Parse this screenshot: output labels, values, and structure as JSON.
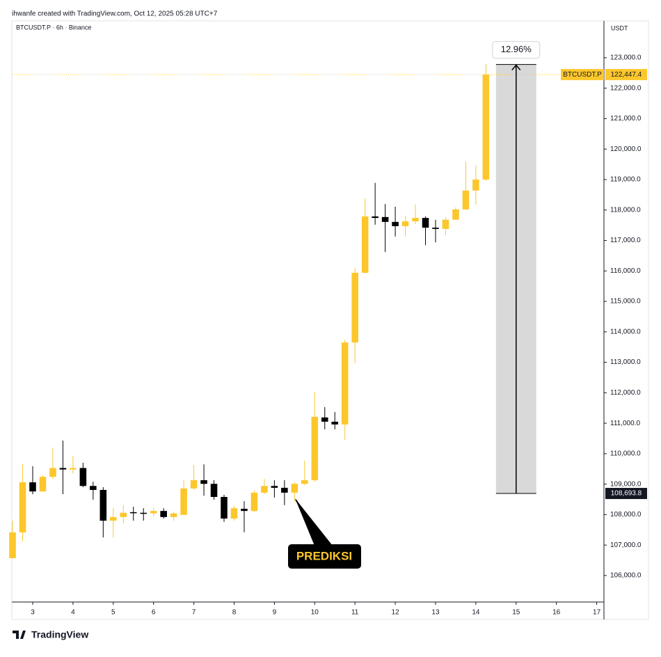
{
  "chart_data": {
    "type": "candlestick",
    "credit": "ihwanfe created with TradingView.com, Oct 12, 2025 05:28 UTC+7",
    "title": "BTCUSDT.P · 6h · Binance",
    "currency": "USDT",
    "brand": "TradingView",
    "up_color": "#fcc72c",
    "down_color": "#000000",
    "xlim": [
      2.482,
      17.18
    ],
    "xticks": [
      3,
      4,
      5,
      6,
      7,
      8,
      9,
      10,
      11,
      12,
      13,
      14,
      15,
      16,
      17
    ],
    "ylim": [
      105130,
      124210
    ],
    "yticks": [
      {
        "value": 106000,
        "label": "106,000.0"
      },
      {
        "value": 107000,
        "label": "107,000.0"
      },
      {
        "value": 108000,
        "label": "108,000.0"
      },
      {
        "value": 109000,
        "label": "109,000.0"
      },
      {
        "value": 110000,
        "label": "110,000.0"
      },
      {
        "value": 111000,
        "label": "111,000.0"
      },
      {
        "value": 112000,
        "label": "112,000.0"
      },
      {
        "value": 113000,
        "label": "113,000.0"
      },
      {
        "value": 114000,
        "label": "114,000.0"
      },
      {
        "value": 115000,
        "label": "115,000.0"
      },
      {
        "value": 116000,
        "label": "116,000.0"
      },
      {
        "value": 117000,
        "label": "117,000.0"
      },
      {
        "value": 118000,
        "label": "118,000.0"
      },
      {
        "value": 119000,
        "label": "119,000.0"
      },
      {
        "value": 120000,
        "label": "120,000.0"
      },
      {
        "value": 121000,
        "label": "121,000.0"
      },
      {
        "value": 122000,
        "label": "122,000.0"
      },
      {
        "value": 123000,
        "label": "123,000.0"
      }
    ],
    "series": [
      {
        "name": "BTCUSDT.P",
        "x": [
          2.5,
          2.75,
          3,
          3.25,
          3.5,
          3.75,
          4,
          4.25,
          4.5,
          4.75,
          5,
          5.25,
          5.5,
          5.75,
          6,
          6.25,
          6.5,
          6.75,
          7,
          7.25,
          7.5,
          7.75,
          8,
          8.25,
          8.5,
          8.75,
          9,
          9.25,
          9.5,
          9.75,
          10,
          10.25,
          10.5,
          10.75,
          11,
          11.25,
          11.5,
          11.75,
          12,
          12.25,
          12.5,
          12.75,
          13,
          13.25,
          13.5,
          13.75,
          14,
          14.25
        ],
        "open": [
          106570,
          107415,
          109060,
          108760,
          109240,
          109530,
          109480,
          109530,
          108940,
          108810,
          107800,
          107920,
          108080,
          108060,
          108040,
          108120,
          107920,
          107990,
          108860,
          109130,
          109010,
          108580,
          107870,
          108190,
          108120,
          108720,
          108940,
          108880,
          108720,
          109010,
          109130,
          111190,
          111050,
          110960,
          113650,
          115940,
          117790,
          117770,
          117610,
          117470,
          117630,
          117740,
          117420,
          117380,
          117680,
          118020,
          118640,
          119000
        ],
        "high": [
          107800,
          109650,
          109590,
          109290,
          110200,
          110430,
          109930,
          109700,
          109080,
          108900,
          108210,
          108310,
          108260,
          108210,
          108210,
          108210,
          108100,
          109130,
          109630,
          109650,
          109130,
          108650,
          108280,
          108440,
          108790,
          109170,
          109130,
          109130,
          109060,
          109770,
          112030,
          111530,
          111370,
          113740,
          116100,
          118380,
          118890,
          118200,
          118110,
          117810,
          118180,
          117790,
          117680,
          117770,
          118090,
          119600,
          119460,
          122800
        ],
        "low": [
          106570,
          107120,
          108670,
          108760,
          109170,
          108670,
          109350,
          108900,
          108490,
          107250,
          107250,
          107710,
          107800,
          107800,
          107940,
          107870,
          107800,
          107990,
          108810,
          108620,
          108490,
          107760,
          107800,
          107420,
          108080,
          108670,
          108560,
          108310,
          108440,
          108970,
          109080,
          110800,
          110800,
          110450,
          112970,
          115920,
          117520,
          116620,
          117130,
          117130,
          117540,
          116850,
          116940,
          117170,
          117680,
          118000,
          118180,
          118960
        ],
        "close": [
          107415,
          109060,
          108760,
          109240,
          109530,
          109480,
          109530,
          108940,
          108810,
          107800,
          107920,
          108060,
          108060,
          108040,
          108120,
          107920,
          108040,
          108860,
          109130,
          109010,
          108580,
          107870,
          108210,
          108120,
          108720,
          108940,
          108880,
          108720,
          109010,
          109130,
          111210,
          111050,
          110960,
          113650,
          115940,
          117790,
          117740,
          117610,
          117470,
          117630,
          117740,
          117420,
          117380,
          117680,
          118020,
          118640,
          119000,
          122447.4
        ]
      }
    ],
    "last_price": {
      "value": 122447.4,
      "label": "122,447.4"
    },
    "measure": {
      "label": "12.96%",
      "low": {
        "value": 108693.8,
        "label": "108,693.8"
      },
      "high": 122780,
      "x_range": [
        14.5,
        15.5
      ]
    },
    "annotation": "PREDIKSI"
  }
}
